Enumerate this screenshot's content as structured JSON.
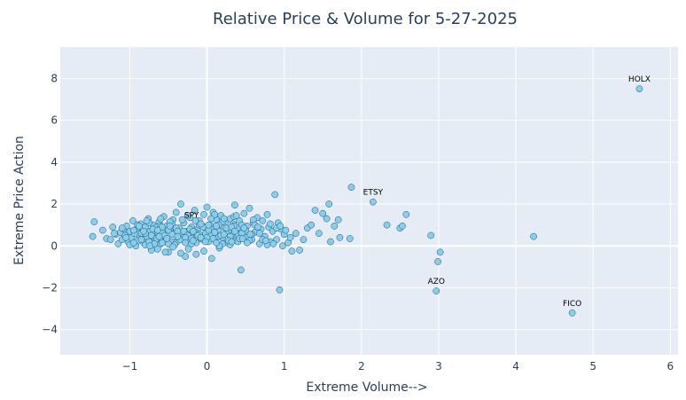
{
  "chart_data": {
    "type": "scatter",
    "title": "Relative Price & Volume for 5-27-2025",
    "xlabel": "Extreme Volume-->",
    "ylabel": "Extreme Price Action",
    "xlim": [
      -1.9,
      6.1
    ],
    "ylim": [
      -5.2,
      9.5
    ],
    "x_ticks": [
      -1,
      0,
      1,
      2,
      3,
      4,
      5,
      6
    ],
    "x_tick_labels": [
      "−1",
      "0",
      "1",
      "2",
      "3",
      "4",
      "5",
      "6"
    ],
    "y_ticks": [
      -4,
      -2,
      0,
      2,
      4,
      6,
      8
    ],
    "y_tick_labels": [
      "−4",
      "−2",
      "0",
      "2",
      "4",
      "6",
      "8"
    ],
    "grid": true,
    "colors": {
      "marker_fill": "#87CEEB",
      "marker_edge": "#1f4e79",
      "plot_bg": "#E5ECF6",
      "grid": "#ffffff",
      "text": "#2a3f5f"
    },
    "annotations": [
      {
        "text": "HOLX",
        "x": 5.6,
        "y": 7.5
      },
      {
        "text": "SPY",
        "x": -0.2,
        "y": 1.0
      },
      {
        "text": "ETSY",
        "x": 2.15,
        "y": 2.1
      },
      {
        "text": "AZO",
        "x": 2.97,
        "y": -2.15
      },
      {
        "text": "FICO",
        "x": 4.73,
        "y": -3.2
      }
    ],
    "points": [
      [
        -1.46,
        1.15
      ],
      [
        -1.48,
        0.45
      ],
      [
        -1.35,
        0.75
      ],
      [
        -1.3,
        0.35
      ],
      [
        -1.25,
        0.3
      ],
      [
        -1.22,
        0.9
      ],
      [
        -1.18,
        0.55
      ],
      [
        -1.15,
        0.1
      ],
      [
        -1.12,
        0.65
      ],
      [
        -1.1,
        0.3
      ],
      [
        -1.08,
        0.8
      ],
      [
        -1.06,
        0.5
      ],
      [
        -1.04,
        0.95
      ],
      [
        -1.02,
        0.2
      ],
      [
        -1.0,
        0.7
      ],
      [
        -0.98,
        0.4
      ],
      [
        -0.96,
        1.2
      ],
      [
        -0.94,
        0.6
      ],
      [
        -0.92,
        0.0
      ],
      [
        -0.9,
        0.85
      ],
      [
        -0.88,
        0.35
      ],
      [
        -0.86,
        1.05
      ],
      [
        -0.84,
        0.55
      ],
      [
        -0.82,
        0.15
      ],
      [
        -0.8,
        0.9
      ],
      [
        -0.78,
        0.45
      ],
      [
        -0.76,
        1.3
      ],
      [
        -0.74,
        0.7
      ],
      [
        -0.72,
        -0.2
      ],
      [
        -0.7,
        1.0
      ],
      [
        -0.68,
        0.3
      ],
      [
        -0.66,
        0.8
      ],
      [
        -0.64,
        0.55
      ],
      [
        -0.62,
        1.15
      ],
      [
        -0.6,
        0.1
      ],
      [
        -0.58,
        0.65
      ],
      [
        -0.56,
        1.4
      ],
      [
        -0.54,
        0.4
      ],
      [
        -0.52,
        0.95
      ],
      [
        -0.5,
        -0.3
      ],
      [
        -0.48,
        0.75
      ],
      [
        -0.46,
        0.2
      ],
      [
        -0.44,
        1.25
      ],
      [
        -0.42,
        0.6
      ],
      [
        -0.4,
        1.6
      ],
      [
        -0.38,
        0.3
      ],
      [
        -0.36,
        0.85
      ],
      [
        -0.34,
        2.0
      ],
      [
        -0.32,
        0.5
      ],
      [
        -0.3,
        1.1
      ],
      [
        -0.28,
        -0.5
      ],
      [
        -0.26,
        0.7
      ],
      [
        -0.24,
        0.25
      ],
      [
        -0.22,
        1.35
      ],
      [
        -0.2,
        0.9
      ],
      [
        -0.18,
        0.45
      ],
      [
        -0.16,
        1.7
      ],
      [
        -0.14,
        0.15
      ],
      [
        -0.12,
        0.8
      ],
      [
        -0.1,
        1.2
      ],
      [
        -0.08,
        0.35
      ],
      [
        -0.06,
        0.95
      ],
      [
        -0.04,
        1.5
      ],
      [
        -0.02,
        0.6
      ],
      [
        0.0,
        1.85
      ],
      [
        0.02,
        0.2
      ],
      [
        0.04,
        1.0
      ],
      [
        0.06,
        0.55
      ],
      [
        0.08,
        1.6
      ],
      [
        0.1,
        0.3
      ],
      [
        0.12,
        1.25
      ],
      [
        0.14,
        0.75
      ],
      [
        0.16,
        -0.1
      ],
      [
        0.18,
        1.45
      ],
      [
        0.2,
        0.4
      ],
      [
        0.22,
        0.9
      ],
      [
        0.24,
        1.1
      ],
      [
        0.26,
        0.15
      ],
      [
        0.28,
        0.65
      ],
      [
        0.3,
        1.3
      ],
      [
        0.32,
        0.5
      ],
      [
        0.34,
        1.05
      ],
      [
        0.36,
        1.95
      ],
      [
        0.38,
        0.25
      ],
      [
        0.4,
        0.85
      ],
      [
        0.42,
        1.2
      ],
      [
        0.44,
        -1.15
      ],
      [
        0.46,
        0.7
      ],
      [
        0.48,
        1.55
      ],
      [
        0.5,
        0.4
      ],
      [
        0.52,
        0.95
      ],
      [
        0.55,
        1.8
      ],
      [
        0.58,
        0.3
      ],
      [
        0.6,
        1.1
      ],
      [
        0.62,
        0.65
      ],
      [
        0.65,
        1.35
      ],
      [
        0.68,
        0.1
      ],
      [
        0.7,
        0.8
      ],
      [
        0.72,
        1.2
      ],
      [
        0.75,
        0.45
      ],
      [
        0.78,
        1.5
      ],
      [
        0.8,
        0.9
      ],
      [
        0.82,
        0.2
      ],
      [
        0.85,
        0.7
      ],
      [
        0.88,
        2.45
      ],
      [
        0.9,
        0.3
      ],
      [
        0.92,
        1.1
      ],
      [
        0.94,
        -2.1
      ],
      [
        0.96,
        0.8
      ],
      [
        0.98,
        0.0
      ],
      [
        1.0,
        0.55
      ],
      [
        1.05,
        0.15
      ],
      [
        1.1,
        -0.25
      ],
      [
        1.15,
        0.6
      ],
      [
        1.2,
        -0.2
      ],
      [
        1.25,
        0.3
      ],
      [
        1.3,
        0.85
      ],
      [
        1.35,
        1.0
      ],
      [
        1.4,
        1.7
      ],
      [
        1.45,
        0.6
      ],
      [
        1.5,
        1.55
      ],
      [
        1.55,
        1.3
      ],
      [
        1.58,
        2.0
      ],
      [
        1.6,
        0.2
      ],
      [
        1.65,
        0.95
      ],
      [
        1.7,
        1.25
      ],
      [
        1.72,
        0.4
      ],
      [
        1.85,
        0.35
      ],
      [
        1.87,
        2.8
      ],
      [
        2.15,
        2.1
      ],
      [
        2.33,
        1.0
      ],
      [
        2.5,
        0.85
      ],
      [
        2.53,
        0.95
      ],
      [
        2.58,
        1.5
      ],
      [
        2.9,
        0.5
      ],
      [
        2.97,
        -2.15
      ],
      [
        2.99,
        -0.75
      ],
      [
        3.02,
        -0.3
      ],
      [
        4.23,
        0.45
      ],
      [
        4.73,
        -3.2
      ],
      [
        5.6,
        7.5
      ],
      [
        -0.9,
        0.25
      ],
      [
        -0.85,
        0.6
      ],
      [
        -0.8,
        0.05
      ],
      [
        -0.75,
        1.1
      ],
      [
        -0.7,
        0.45
      ],
      [
        -0.65,
        0.9
      ],
      [
        -0.6,
        1.3
      ],
      [
        -0.55,
        0.2
      ],
      [
        -0.5,
        0.75
      ],
      [
        -0.45,
        1.05
      ],
      [
        -0.4,
        0.15
      ],
      [
        -0.35,
        0.6
      ],
      [
        -0.3,
        0.4
      ],
      [
        -0.25,
        1.45
      ],
      [
        -0.2,
        0.1
      ],
      [
        -0.15,
        0.65
      ],
      [
        -0.1,
        1.0
      ],
      [
        -0.05,
        0.3
      ],
      [
        0.05,
        0.8
      ],
      [
        0.1,
        1.5
      ],
      [
        0.15,
        0.45
      ],
      [
        0.2,
        1.15
      ],
      [
        0.25,
        0.6
      ],
      [
        0.3,
        0.05
      ],
      [
        0.35,
        1.4
      ],
      [
        0.4,
        0.55
      ],
      [
        0.45,
        1.0
      ],
      [
        0.5,
        0.75
      ],
      [
        0.55,
        0.25
      ],
      [
        0.6,
        1.25
      ],
      [
        -1.0,
        0.05
      ],
      [
        -0.95,
        0.75
      ],
      [
        -0.9,
        1.0
      ],
      [
        -0.85,
        0.3
      ],
      [
        -0.8,
        0.6
      ],
      [
        -0.75,
        0.2
      ],
      [
        -0.7,
        0.8
      ],
      [
        -0.65,
        0.35
      ],
      [
        -0.6,
        0.95
      ],
      [
        -0.55,
        0.5
      ],
      [
        -0.5,
        0.1
      ],
      [
        -0.45,
        0.55
      ],
      [
        -0.4,
        0.85
      ],
      [
        -0.35,
        0.3
      ],
      [
        -0.3,
        0.7
      ],
      [
        -0.25,
        0.5
      ],
      [
        -0.2,
        0.35
      ],
      [
        -0.15,
        1.2
      ],
      [
        -0.1,
        0.55
      ],
      [
        -0.05,
        0.9
      ],
      [
        0.0,
        0.4
      ],
      [
        0.05,
        1.3
      ],
      [
        0.1,
        0.65
      ],
      [
        0.15,
        1.0
      ],
      [
        0.2,
        0.1
      ],
      [
        0.25,
        0.85
      ],
      [
        0.3,
        0.45
      ],
      [
        0.35,
        0.95
      ],
      [
        0.4,
        0.2
      ],
      [
        0.45,
        0.6
      ],
      [
        -0.62,
        0.45
      ],
      [
        -0.58,
        0.9
      ],
      [
        -0.52,
        0.35
      ],
      [
        -0.48,
        1.15
      ],
      [
        -0.42,
        0.05
      ],
      [
        -0.38,
        0.7
      ],
      [
        -0.32,
        1.25
      ],
      [
        -0.28,
        0.4
      ],
      [
        -0.22,
        0.8
      ],
      [
        -0.18,
        0.25
      ],
      [
        -0.12,
        0.5
      ],
      [
        -0.08,
        1.05
      ],
      [
        -0.02,
        0.2
      ],
      [
        0.02,
        0.75
      ],
      [
        0.08,
        0.35
      ],
      [
        0.12,
        0.95
      ],
      [
        0.18,
        0.5
      ],
      [
        0.22,
        1.3
      ],
      [
        0.28,
        0.25
      ],
      [
        0.32,
        0.9
      ],
      [
        0.38,
        1.45
      ],
      [
        0.42,
        0.35
      ],
      [
        0.48,
        0.85
      ],
      [
        0.52,
        0.15
      ],
      [
        0.58,
        0.55
      ],
      [
        0.62,
        1.0
      ],
      [
        0.68,
        0.6
      ],
      [
        0.72,
        0.3
      ],
      [
        0.78,
        0.05
      ],
      [
        0.82,
        1.05
      ],
      [
        -1.2,
        0.6
      ],
      [
        -1.1,
        0.85
      ],
      [
        -1.05,
        0.4
      ],
      [
        -0.95,
        0.15
      ],
      [
        -0.88,
        0.95
      ],
      [
        -0.82,
        0.7
      ],
      [
        -0.78,
        1.2
      ],
      [
        -0.72,
        0.5
      ],
      [
        -0.68,
        0.1
      ],
      [
        -0.64,
        0.75
      ],
      [
        -0.34,
        -0.35
      ],
      [
        -0.24,
        -0.15
      ],
      [
        -0.14,
        -0.4
      ],
      [
        -0.04,
        -0.25
      ],
      [
        0.06,
        -0.6
      ],
      [
        0.16,
        0.0
      ],
      [
        -0.44,
        -0.05
      ],
      [
        -0.54,
        -0.3
      ],
      [
        -0.64,
        -0.15
      ],
      [
        -0.74,
        0.0
      ],
      [
        0.9,
        0.85
      ],
      [
        0.95,
        0.95
      ],
      [
        1.02,
        0.75
      ],
      [
        1.08,
        0.4
      ],
      [
        0.86,
        0.1
      ],
      [
        0.76,
        0.25
      ],
      [
        0.66,
        0.9
      ],
      [
        0.56,
        0.55
      ],
      [
        0.46,
        0.35
      ],
      [
        0.36,
        0.7
      ],
      [
        -0.58,
        0.15
      ],
      [
        -0.48,
        0.95
      ],
      [
        -0.38,
        0.45
      ],
      [
        -0.28,
        0.15
      ],
      [
        -0.18,
        0.7
      ],
      [
        -0.08,
        0.4
      ],
      [
        0.02,
        1.0
      ],
      [
        0.12,
        0.15
      ],
      [
        0.22,
        0.55
      ],
      [
        0.32,
        0.2
      ]
    ]
  }
}
